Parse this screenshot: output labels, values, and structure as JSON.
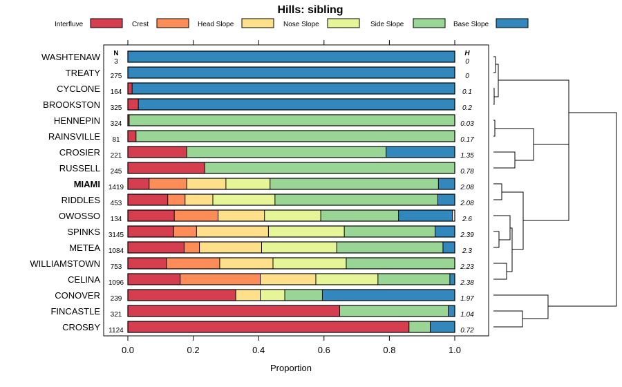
{
  "chart_data": {
    "type": "bar",
    "orientation": "horizontal-stacked",
    "title": "Hills: sibling",
    "xlabel": "Proportion",
    "ylabel": "",
    "xlim": [
      0,
      1
    ],
    "x_ticks": [
      "0.0",
      "0.2",
      "0.4",
      "0.6",
      "0.8",
      "1.0"
    ],
    "n_header": "N",
    "h_header": "H",
    "legend_position": "top",
    "series": [
      {
        "name": "Interfluve",
        "color": "#d53e4f"
      },
      {
        "name": "Crest",
        "color": "#fc8d59"
      },
      {
        "name": "Head Slope",
        "color": "#fee08b"
      },
      {
        "name": "Nose Slope",
        "color": "#e6f598"
      },
      {
        "name": "Side Slope",
        "color": "#99d594"
      },
      {
        "name": "Base Slope",
        "color": "#3288bd"
      }
    ],
    "categories": [
      {
        "name": "WASHTENAW",
        "n": "3",
        "h": "0",
        "values": [
          0,
          0,
          0,
          0,
          0,
          1.0
        ]
      },
      {
        "name": "TREATY",
        "n": "275",
        "h": "0",
        "values": [
          0,
          0,
          0,
          0,
          0,
          1.0
        ]
      },
      {
        "name": "CYCLONE",
        "n": "164",
        "h": "0.1",
        "values": [
          0.013,
          0,
          0,
          0,
          0,
          0.987
        ]
      },
      {
        "name": "BROOKSTON",
        "n": "325",
        "h": "0.2",
        "values": [
          0.032,
          0,
          0,
          0,
          0,
          0.968
        ]
      },
      {
        "name": "HENNEPIN",
        "n": "324",
        "h": "0.03",
        "values": [
          0.004,
          0,
          0,
          0,
          0.996,
          0
        ]
      },
      {
        "name": "RAINSVILLE",
        "n": "81",
        "h": "0.17",
        "values": [
          0.025,
          0,
          0,
          0,
          0.975,
          0
        ]
      },
      {
        "name": "CROSIER",
        "n": "221",
        "h": "1.35",
        "values": [
          0.18,
          0,
          0,
          0,
          0.61,
          0.21
        ]
      },
      {
        "name": "RUSSELL",
        "n": "245",
        "h": "0.78",
        "values": [
          0.235,
          0,
          0,
          0,
          0.765,
          0
        ]
      },
      {
        "name": "MIAMI",
        "n": "1419",
        "h": "2.08",
        "values": [
          0.065,
          0.115,
          0.12,
          0.135,
          0.515,
          0.05
        ],
        "bold": true
      },
      {
        "name": "RIDDLES",
        "n": "453",
        "h": "2.08",
        "values": [
          0.122,
          0.053,
          0.085,
          0.19,
          0.498,
          0.052
        ]
      },
      {
        "name": "OWOSSO",
        "n": "134",
        "h": "2.6",
        "values": [
          0.142,
          0.134,
          0.142,
          0.172,
          0.238,
          0.165
        ]
      },
      {
        "name": "SPINKS",
        "n": "3145",
        "h": "2.39",
        "values": [
          0.14,
          0.07,
          0.22,
          0.232,
          0.278,
          0.06
        ]
      },
      {
        "name": "METEA",
        "n": "1084",
        "h": "2.3",
        "values": [
          0.172,
          0.047,
          0.19,
          0.23,
          0.325,
          0.036
        ]
      },
      {
        "name": "WILLIAMSTOWN",
        "n": "753",
        "h": "2.23",
        "values": [
          0.118,
          0.163,
          0.163,
          0.224,
          0.332,
          0
        ]
      },
      {
        "name": "CELINA",
        "n": "1096",
        "h": "2.38",
        "values": [
          0.16,
          0.245,
          0.17,
          0.19,
          0.22,
          0.015
        ]
      },
      {
        "name": "CONOVER",
        "n": "239",
        "h": "1.97",
        "values": [
          0.33,
          0,
          0.075,
          0.075,
          0.115,
          0.405
        ]
      },
      {
        "name": "FINCASTLE",
        "n": "321",
        "h": "1.04",
        "values": [
          0.648,
          0,
          0,
          0,
          0.332,
          0.02
        ]
      },
      {
        "name": "CROSBY",
        "n": "1124",
        "h": "0.72",
        "values": [
          0.86,
          0,
          0,
          0,
          0.065,
          0.075
        ]
      }
    ]
  }
}
